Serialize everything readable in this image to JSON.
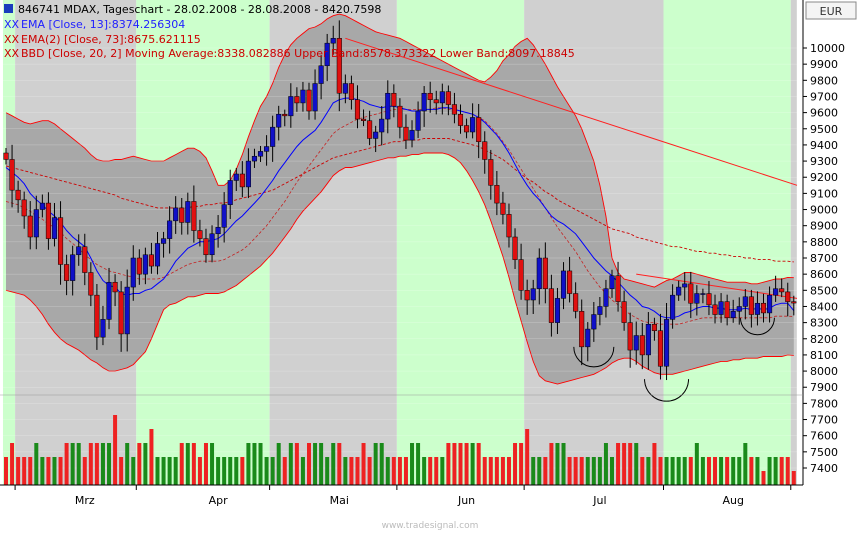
{
  "currency_badge": "EUR",
  "watermark": "www.tradesignal.com",
  "legend": {
    "title": "846741  MDAX, Tageschart - 28.02.2008 - 28.08.2008 - 8420.7598",
    "ema13": "EMA [Close, 13]:8374.256304",
    "ema73": "EMA(2) [Close, 73]:8675.621115",
    "bbd": "BBD [Close, 20, 2] Moving Average:8338.082886 Upper Band:8578.373322 Lower Band:8097.18845"
  },
  "colors": {
    "up": "#1010c8",
    "down": "#e01010",
    "ema13": "#0000ff",
    "ema73": "#cc0000",
    "band_line": "#ff0000",
    "band_fill": "#a8a8a8",
    "shade_gray": "#d0d0d0",
    "shade_green": "#ccffcc",
    "vol_up": "#1a8a1a",
    "vol_down": "#ee2222"
  },
  "chart_data": {
    "type": "candlestick",
    "instrument": "MDAX",
    "period": "28.02.2008 - 28.08.2008",
    "currency": "EUR",
    "y_ticks": [
      7400,
      7500,
      7600,
      7700,
      7800,
      7900,
      8000,
      8100,
      8200,
      8300,
      8400,
      8500,
      8600,
      8700,
      8800,
      8900,
      9000,
      9100,
      9200,
      9300,
      9400,
      9500,
      9600,
      9700,
      9800,
      9900,
      10000
    ],
    "ylim": [
      7340,
      10140
    ],
    "x_labels": [
      {
        "label": "Mrz",
        "index": 13
      },
      {
        "label": "Apr",
        "index": 35
      },
      {
        "label": "Mai",
        "index": 55
      },
      {
        "label": "Jun",
        "index": 76
      },
      {
        "label": "Jul",
        "index": 98
      },
      {
        "label": "Aug",
        "index": 120
      }
    ],
    "month_bands": [
      {
        "start": 0,
        "end": 2,
        "shade": "green"
      },
      {
        "start": 2,
        "end": 22,
        "shade": "gray"
      },
      {
        "start": 22,
        "end": 44,
        "shade": "green"
      },
      {
        "start": 44,
        "end": 65,
        "shade": "gray"
      },
      {
        "start": 65,
        "end": 86,
        "shade": "green"
      },
      {
        "start": 86,
        "end": 109,
        "shade": "gray"
      },
      {
        "start": 109,
        "end": 130,
        "shade": "green"
      },
      {
        "start": 130,
        "end": 131,
        "shade": "gray"
      }
    ],
    "series": [
      {
        "name": "MDAX",
        "key": "close",
        "values": [
          9310,
          9120,
          9060,
          8960,
          8830,
          9000,
          9040,
          8820,
          8950,
          8660,
          8560,
          8720,
          8770,
          8610,
          8470,
          8210,
          8320,
          8550,
          8490,
          8230,
          8520,
          8700,
          8600,
          8720,
          8650,
          8790,
          8820,
          8930,
          9010,
          8920,
          9050,
          8870,
          8820,
          8720,
          8850,
          8890,
          9030,
          9180,
          9220,
          9140,
          9300,
          9330,
          9360,
          9390,
          9510,
          9590,
          9580,
          9700,
          9660,
          9740,
          9610,
          9780,
          9890,
          10030,
          10060,
          9720,
          9780,
          9680,
          9560,
          9550,
          9440,
          9480,
          9560,
          9720,
          9640,
          9510,
          9430,
          9490,
          9610,
          9720,
          9680,
          9660,
          9730,
          9650,
          9590,
          9520,
          9480,
          9570,
          9420,
          9310,
          9150,
          9040,
          8970,
          8830,
          8690,
          8500,
          8440,
          8510,
          8700,
          8510,
          8300,
          8450,
          8620,
          8480,
          8370,
          8150,
          8260,
          8350,
          8400,
          8510,
          8590,
          8430,
          8300,
          8130,
          8220,
          8100,
          8290,
          8250,
          8030,
          8320,
          8470,
          8520,
          8540,
          8420,
          8480,
          8480,
          8410,
          8350,
          8430,
          8330,
          8370,
          8400,
          8460,
          8350,
          8420,
          8360,
          8470,
          8510,
          8490,
          8430,
          8421
        ]
      },
      {
        "name": "EMA [Close, 13]",
        "key": "ema13",
        "values": [
          9260,
          9230,
          9200,
          9160,
          9100,
          9060,
          9030,
          8990,
          8960,
          8920,
          8870,
          8830,
          8800,
          8770,
          8700,
          8620,
          8560,
          8530,
          8520,
          8480,
          8470,
          8480,
          8480,
          8500,
          8510,
          8540,
          8570,
          8620,
          8680,
          8720,
          8760,
          8780,
          8800,
          8800,
          8810,
          8820,
          8850,
          8890,
          8930,
          8960,
          9000,
          9040,
          9080,
          9130,
          9180,
          9240,
          9290,
          9340,
          9390,
          9430,
          9460,
          9490,
          9540,
          9600,
          9660,
          9680,
          9690,
          9690,
          9680,
          9670,
          9650,
          9640,
          9630,
          9640,
          9640,
          9630,
          9620,
          9610,
          9610,
          9620,
          9620,
          9620,
          9630,
          9630,
          9620,
          9610,
          9600,
          9590,
          9570,
          9540,
          9500,
          9460,
          9410,
          9350,
          9280,
          9210,
          9150,
          9100,
          9060,
          9010,
          8960,
          8930,
          8910,
          8880,
          8850,
          8800,
          8750,
          8700,
          8660,
          8620,
          8590,
          8550,
          8510,
          8470,
          8440,
          8400,
          8390,
          8370,
          8340,
          8330,
          8330,
          8340,
          8360,
          8370,
          8390,
          8400,
          8400,
          8390,
          8390,
          8380,
          8380,
          8380,
          8390,
          8380,
          8390,
          8380,
          8390,
          8410,
          8420,
          8420,
          8374
        ]
      },
      {
        "name": "EMA(2) [Close, 73]",
        "key": "ema73",
        "values": [
          9270,
          9260,
          9250,
          9240,
          9230,
          9220,
          9210,
          9200,
          9190,
          9180,
          9170,
          9160,
          9150,
          9140,
          9130,
          9120,
          9110,
          9100,
          9090,
          9070,
          9060,
          9050,
          9040,
          9030,
          9020,
          9010,
          9010,
          9010,
          9010,
          9010,
          9010,
          9020,
          9020,
          9030,
          9030,
          9040,
          9040,
          9050,
          9060,
          9070,
          9080,
          9090,
          9100,
          9110,
          9120,
          9140,
          9160,
          9180,
          9200,
          9220,
          9240,
          9260,
          9280,
          9300,
          9320,
          9330,
          9340,
          9350,
          9360,
          9370,
          9380,
          9390,
          9400,
          9410,
          9420,
          9420,
          9430,
          9430,
          9430,
          9440,
          9440,
          9440,
          9440,
          9440,
          9430,
          9420,
          9410,
          9400,
          9390,
          9370,
          9350,
          9330,
          9310,
          9280,
          9250,
          9220,
          9190,
          9170,
          9140,
          9110,
          9090,
          9060,
          9040,
          9020,
          9000,
          8980,
          8960,
          8940,
          8920,
          8900,
          8880,
          8870,
          8860,
          8850,
          8830,
          8820,
          8810,
          8800,
          8790,
          8780,
          8770,
          8770,
          8760,
          8750,
          8740,
          8740,
          8730,
          8730,
          8720,
          8720,
          8710,
          8710,
          8700,
          8700,
          8690,
          8690,
          8690,
          8680,
          8680,
          8680,
          8676
        ]
      },
      {
        "name": "BBD Upper Band",
        "key": "upper",
        "values": [
          9600,
          9580,
          9560,
          9540,
          9530,
          9540,
          9550,
          9550,
          9530,
          9500,
          9470,
          9440,
          9410,
          9380,
          9340,
          9310,
          9300,
          9300,
          9310,
          9310,
          9320,
          9330,
          9320,
          9310,
          9300,
          9300,
          9300,
          9320,
          9340,
          9360,
          9380,
          9380,
          9360,
          9320,
          9240,
          9150,
          9150,
          9180,
          9250,
          9340,
          9450,
          9550,
          9640,
          9700,
          9780,
          9880,
          9960,
          10020,
          10060,
          10090,
          10120,
          10130,
          10150,
          10180,
          10200,
          10210,
          10200,
          10180,
          10160,
          10140,
          10120,
          10100,
          10090,
          10080,
          10070,
          10060,
          10040,
          10020,
          10000,
          9980,
          9960,
          9940,
          9920,
          9900,
          9880,
          9860,
          9840,
          9820,
          9800,
          9790,
          9820,
          9860,
          9920,
          9960,
          10010,
          10040,
          10060,
          10020,
          9960,
          9900,
          9830,
          9760,
          9700,
          9640,
          9580,
          9500,
          9400,
          9300,
          9150,
          8960,
          8700,
          8610,
          8570,
          8560,
          8550,
          8540,
          8530,
          8520,
          8540,
          8560,
          8570,
          8590,
          8610,
          8610,
          8600,
          8590,
          8580,
          8570,
          8560,
          8550,
          8550,
          8550,
          8550,
          8540,
          8540,
          8550,
          8560,
          8570,
          8570,
          8580,
          8578
        ]
      },
      {
        "name": "BBD Moving Average",
        "key": "mid",
        "values": [
          9050,
          9040,
          9030,
          9010,
          8990,
          8960,
          8940,
          8910,
          8890,
          8860,
          8820,
          8790,
          8760,
          8720,
          8690,
          8660,
          8640,
          8620,
          8610,
          8600,
          8590,
          8580,
          8570,
          8570,
          8570,
          8570,
          8580,
          8600,
          8620,
          8640,
          8660,
          8670,
          8680,
          8680,
          8680,
          8680,
          8690,
          8710,
          8730,
          8750,
          8780,
          8820,
          8860,
          8900,
          8950,
          9000,
          9050,
          9110,
          9170,
          9220,
          9270,
          9320,
          9370,
          9420,
          9470,
          9500,
          9520,
          9540,
          9560,
          9570,
          9580,
          9590,
          9600,
          9610,
          9620,
          9620,
          9620,
          9620,
          9620,
          9620,
          9620,
          9630,
          9630,
          9620,
          9620,
          9610,
          9600,
          9590,
          9570,
          9550,
          9510,
          9470,
          9420,
          9370,
          9310,
          9250,
          9190,
          9130,
          9070,
          9010,
          8950,
          8890,
          8840,
          8790,
          8740,
          8680,
          8620,
          8570,
          8520,
          8480,
          8440,
          8410,
          8380,
          8350,
          8330,
          8310,
          8300,
          8300,
          8290,
          8290,
          8290,
          8290,
          8300,
          8310,
          8320,
          8330,
          8330,
          8330,
          8330,
          8330,
          8330,
          8330,
          8330,
          8330,
          8330,
          8330,
          8330,
          8340,
          8340,
          8340,
          8338
        ]
      },
      {
        "name": "BBD Lower Band",
        "key": "lower",
        "values": [
          8500,
          8490,
          8480,
          8470,
          8440,
          8400,
          8350,
          8290,
          8240,
          8200,
          8170,
          8150,
          8130,
          8100,
          8070,
          8050,
          8020,
          8000,
          8000,
          8010,
          8020,
          8040,
          8080,
          8120,
          8200,
          8290,
          8380,
          8410,
          8420,
          8440,
          8460,
          8460,
          8470,
          8480,
          8480,
          8480,
          8490,
          8510,
          8530,
          8560,
          8590,
          8620,
          8650,
          8690,
          8730,
          8780,
          8830,
          8880,
          8940,
          8990,
          9030,
          9070,
          9110,
          9160,
          9210,
          9240,
          9260,
          9260,
          9270,
          9280,
          9290,
          9300,
          9310,
          9320,
          9320,
          9330,
          9330,
          9340,
          9340,
          9350,
          9350,
          9350,
          9350,
          9340,
          9320,
          9290,
          9240,
          9180,
          9110,
          9030,
          8930,
          8820,
          8710,
          8580,
          8440,
          8310,
          8180,
          8060,
          7970,
          7940,
          7930,
          7920,
          7930,
          7940,
          7950,
          7960,
          7970,
          7980,
          8000,
          8020,
          8050,
          8070,
          8080,
          8080,
          8060,
          8030,
          8010,
          7990,
          7980,
          7980,
          7980,
          7990,
          8000,
          8010,
          8020,
          8030,
          8040,
          8050,
          8060,
          8060,
          8070,
          8070,
          8080,
          8080,
          8080,
          8090,
          8090,
          8090,
          8090,
          8100,
          8097
        ]
      },
      {
        "name": "Volume",
        "key": "volume",
        "values": [
          2,
          3,
          2,
          2,
          2,
          3,
          2,
          2,
          2,
          2,
          3,
          3,
          3,
          2,
          3,
          3,
          3,
          3,
          5,
          2,
          3,
          2,
          3,
          3,
          4,
          2,
          2,
          2,
          2,
          3,
          3,
          3,
          2,
          3,
          3,
          2,
          2,
          2,
          2,
          2,
          3,
          3,
          3,
          2,
          2,
          3,
          2,
          3,
          3,
          2,
          3,
          3,
          3,
          2,
          3,
          3,
          2,
          2,
          2,
          3,
          2,
          3,
          3,
          2,
          2,
          2,
          2,
          3,
          3,
          2,
          2,
          2,
          2,
          3,
          3,
          3,
          3,
          3,
          3,
          2,
          2,
          2,
          2,
          2,
          3,
          3,
          4,
          2,
          2,
          2,
          3,
          3,
          3,
          2,
          2,
          2,
          2,
          2,
          2,
          3,
          2,
          3,
          3,
          3,
          3,
          2,
          2,
          3,
          2,
          2,
          2,
          2,
          2,
          2,
          3,
          2,
          2,
          2,
          2,
          2,
          2,
          2,
          3,
          2,
          2,
          1,
          2,
          2,
          2,
          2,
          1
        ]
      }
    ]
  }
}
